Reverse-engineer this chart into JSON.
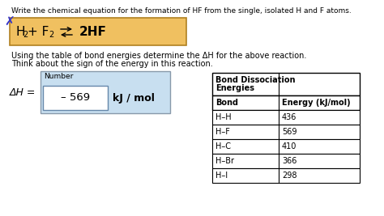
{
  "title_text": "Write the chemical equation for the formation of HF from the single, isolated H and F atoms.",
  "instruction_line1": "Using the table of bond energies determine the ΔH for the above reaction.",
  "instruction_line2": "Think about the sign of the energy in this reaction.",
  "delta_h_label": "ΔH =",
  "number_label": "Number",
  "value_text": "– 569",
  "units_text": "kJ / mol",
  "equation_bg": "#f0c060",
  "equation_border": "#b08020",
  "box_bg": "#c8dff0",
  "box_border": "#8899aa",
  "val_border": "#6688aa",
  "table_header1_line1": "Bond Dissociation",
  "table_header1_line2": "Energies",
  "table_header2": "Bond",
  "table_header3": "Energy (kJ/mol)",
  "table_data": [
    [
      "H–H",
      "436"
    ],
    [
      "H–F",
      "569"
    ],
    [
      "H–C",
      "410"
    ],
    [
      "H–Br",
      "366"
    ],
    [
      "H–I",
      "298"
    ]
  ]
}
